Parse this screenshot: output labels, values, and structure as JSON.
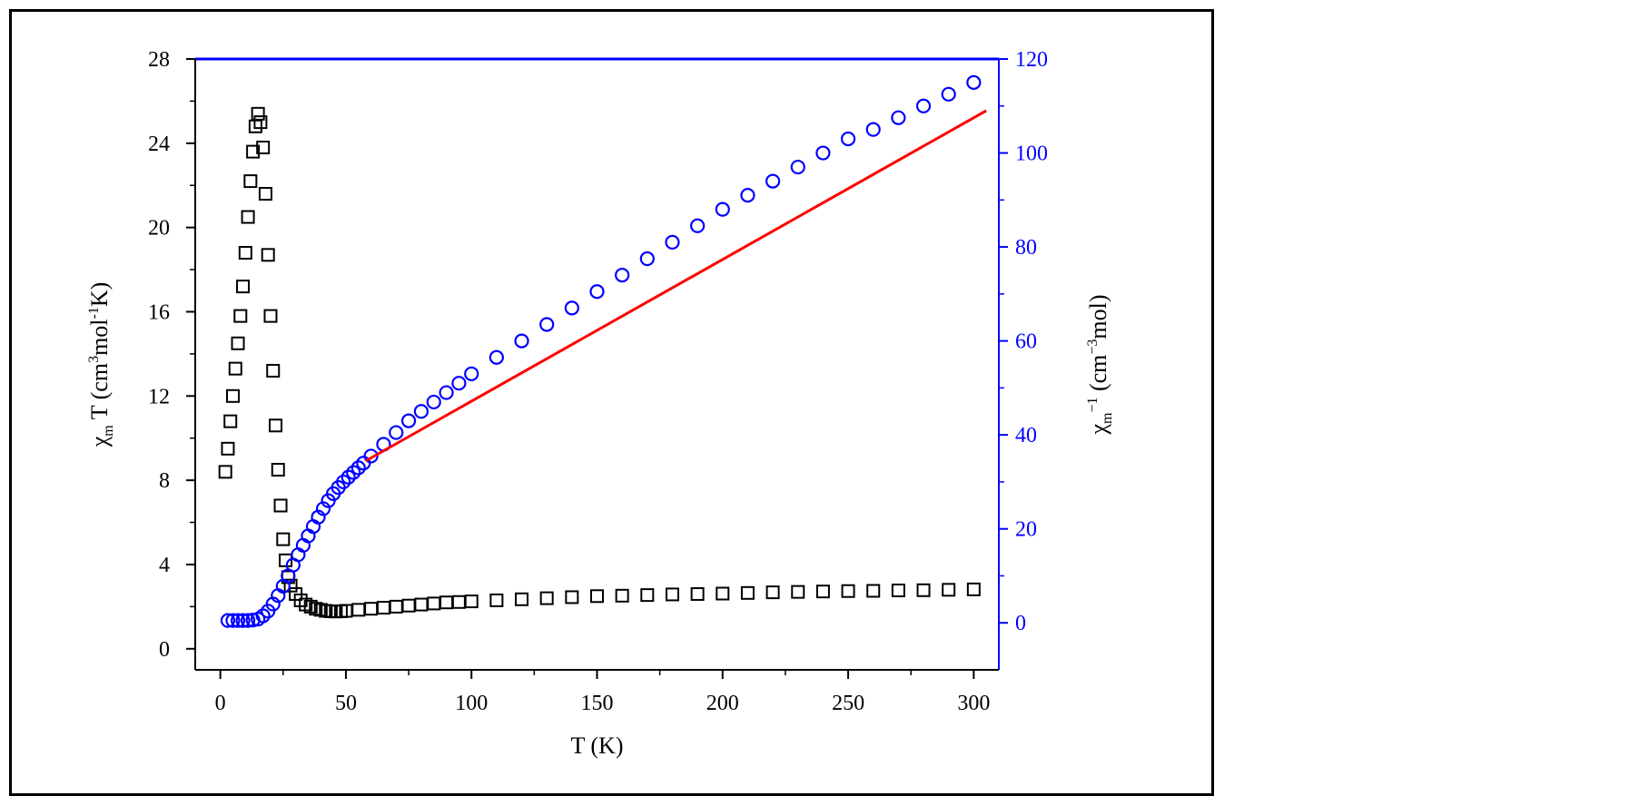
{
  "chart_data": {
    "type": "scatter",
    "xlabel": "T (K)",
    "ylabel_left": {
      "chi": "χ",
      "sub": "m",
      "t": " T (cm",
      "sup1": "3",
      "mol": "mol",
      "sup2": "-1",
      "k": "K)"
    },
    "ylabel_right": {
      "chi": "χ",
      "sub": "m",
      "sup": "−1",
      "unit": " (cm",
      "sup2": "−3",
      "mol": "mol)"
    },
    "xlim": [
      -10,
      310
    ],
    "ylim_left": [
      -1,
      28
    ],
    "ylim_right": [
      -10,
      120
    ],
    "x_ticks": [
      "0",
      "50",
      "100",
      "150",
      "200",
      "250",
      "300"
    ],
    "x_tick_values": [
      0,
      50,
      100,
      150,
      200,
      250,
      300
    ],
    "y_left_ticks": [
      "0",
      "4",
      "8",
      "12",
      "16",
      "20",
      "24",
      "28"
    ],
    "y_left_tick_values": [
      0,
      4,
      8,
      12,
      16,
      20,
      24,
      28
    ],
    "y_right_ticks": [
      "0",
      "20",
      "40",
      "60",
      "80",
      "100",
      "120"
    ],
    "y_right_tick_values": [
      0,
      20,
      40,
      60,
      80,
      100,
      120
    ],
    "colors": {
      "chiT": "#000000",
      "invchi": "#0000ff",
      "fit": "#ff0000",
      "right_axis": "#0000ff"
    },
    "series": [
      {
        "axis": "left",
        "marker": "square",
        "x": [
          2,
          3,
          4,
          5,
          6,
          7,
          8,
          9,
          10,
          11,
          12,
          13,
          14,
          15,
          16,
          17,
          18,
          19,
          20,
          21,
          22,
          23,
          24,
          25,
          26,
          27,
          28,
          30,
          32,
          34,
          36,
          38,
          40,
          42,
          44,
          46,
          48,
          50,
          55,
          60,
          65,
          70,
          75,
          80,
          85,
          90,
          95,
          100,
          110,
          120,
          130,
          140,
          150,
          160,
          170,
          180,
          190,
          200,
          210,
          220,
          230,
          240,
          250,
          260,
          270,
          280,
          290,
          300
        ],
        "y": [
          8.4,
          9.5,
          10.8,
          12.0,
          13.3,
          14.5,
          15.8,
          17.2,
          18.8,
          20.5,
          22.2,
          23.6,
          24.8,
          25.4,
          25.0,
          23.8,
          21.6,
          18.7,
          15.8,
          13.2,
          10.6,
          8.5,
          6.8,
          5.2,
          4.2,
          3.4,
          3.0,
          2.6,
          2.3,
          2.1,
          2.0,
          1.9,
          1.85,
          1.8,
          1.78,
          1.77,
          1.78,
          1.8,
          1.85,
          1.9,
          1.95,
          2.0,
          2.05,
          2.1,
          2.15,
          2.2,
          2.22,
          2.25,
          2.3,
          2.35,
          2.4,
          2.45,
          2.5,
          2.52,
          2.55,
          2.58,
          2.6,
          2.62,
          2.65,
          2.68,
          2.7,
          2.72,
          2.74,
          2.75,
          2.77,
          2.78,
          2.8,
          2.82
        ]
      },
      {
        "axis": "right",
        "marker": "circle",
        "x": [
          3,
          5,
          7,
          9,
          11,
          13,
          15,
          17,
          19,
          21,
          23,
          25,
          27,
          29,
          31,
          33,
          35,
          37,
          39,
          41,
          43,
          45,
          47,
          49,
          51,
          53,
          55,
          57,
          60,
          65,
          70,
          75,
          80,
          85,
          90,
          95,
          100,
          110,
          120,
          130,
          140,
          150,
          160,
          170,
          180,
          190,
          200,
          210,
          220,
          230,
          240,
          250,
          260,
          270,
          280,
          290,
          300
        ],
        "y": [
          0.5,
          0.5,
          0.5,
          0.5,
          0.5,
          0.6,
          0.8,
          1.5,
          2.5,
          4,
          5.8,
          7.8,
          10,
          12.3,
          14.5,
          16.5,
          18.5,
          20.5,
          22.5,
          24.3,
          26,
          27.5,
          28.8,
          30,
          31,
          32,
          33,
          34,
          35.5,
          38,
          40.5,
          43,
          45,
          47,
          49,
          51,
          53,
          56.5,
          60,
          63.5,
          67,
          70.5,
          74,
          77.5,
          81,
          84.5,
          88,
          91,
          94,
          97,
          100,
          103,
          105,
          107.5,
          110,
          112.5,
          115
        ]
      }
    ],
    "fit_line": {
      "axis": "right",
      "x": [
        58,
        305
      ],
      "y": [
        34.5,
        109
      ]
    }
  }
}
